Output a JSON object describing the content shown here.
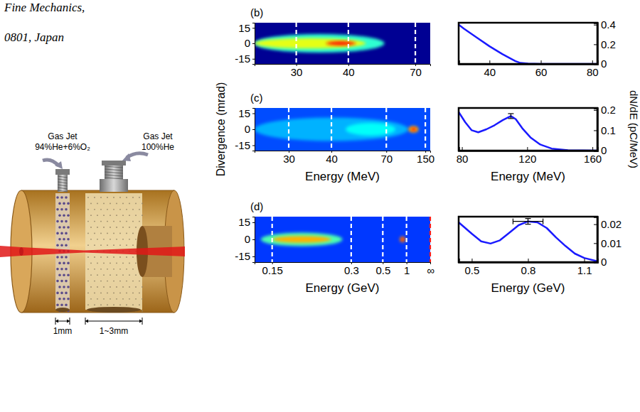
{
  "header": {
    "lines": [
      "Fine Mechanics,",
      "0801, Japan"
    ]
  },
  "diagram": {
    "jets": [
      {
        "label": "Gas Jet",
        "gas": "94%He+6%O₂"
      },
      {
        "label": "Gas Jet",
        "gas": "100%He"
      }
    ],
    "dimensions": [
      "1mm",
      "1~3mm"
    ]
  },
  "chart_data": [
    {
      "type": "heatmap",
      "title": "(b)",
      "xlim": [
        25,
        84
      ],
      "xticks": [
        30,
        40,
        70
      ],
      "ylim": [
        -20,
        20
      ],
      "yticks": [
        15,
        0,
        -15
      ],
      "grid": true,
      "background": 0.02,
      "spots": [
        {
          "energy": [
            25,
            52
          ],
          "divergence": [
            -9,
            9
          ],
          "intensity": 0.42
        },
        {
          "energy": [
            25,
            45
          ],
          "divergence": [
            -5,
            5
          ],
          "intensity": 0.6
        },
        {
          "energy": [
            35,
            42
          ],
          "divergence": [
            -2,
            2
          ],
          "intensity": 0.85
        }
      ]
    },
    {
      "type": "line",
      "x": [
        28,
        30,
        35,
        40,
        45,
        50,
        52,
        55,
        60,
        70,
        82
      ],
      "values": [
        0.4,
        0.36,
        0.27,
        0.18,
        0.1,
        0.03,
        0.01,
        0.004,
        0,
        0,
        0
      ],
      "xlim": [
        28,
        82
      ],
      "xticks": [
        40,
        60,
        80
      ],
      "ylim": [
        0,
        0.42
      ],
      "yticks": [
        0,
        0.2,
        0.4
      ],
      "color": "#1a1aff"
    },
    {
      "type": "heatmap",
      "title": "(c)",
      "xlabel": "Energy (MeV)",
      "ylabel": "Divergence (mrad)",
      "xlim": [
        25,
        175
      ],
      "xticks": [
        30,
        40,
        70,
        150
      ],
      "ylim": [
        -20,
        20
      ],
      "yticks": [
        15,
        0,
        -15
      ],
      "grid": true,
      "background": 0.2,
      "spots": [
        {
          "energy": [
            25,
            100
          ],
          "divergence": [
            -11,
            11
          ],
          "intensity": 0.3
        },
        {
          "energy": [
            45,
            80
          ],
          "divergence": [
            -6,
            6
          ],
          "intensity": 0.38
        },
        {
          "energy": [
            100,
            125
          ],
          "divergence": [
            -3,
            3
          ],
          "intensity": 0.7
        },
        {
          "energy": [
            106,
            118
          ],
          "divergence": [
            -1.5,
            1.5
          ],
          "intensity": 0.85
        }
      ]
    },
    {
      "type": "line",
      "xlabel": "Energy (MeV)",
      "ylabel": "dN/dE (pC/MeV)",
      "x": [
        78,
        82,
        86,
        90,
        95,
        100,
        105,
        110,
        113,
        117,
        122,
        128,
        135,
        145,
        163
      ],
      "values": [
        0.19,
        0.14,
        0.1,
        0.09,
        0.105,
        0.125,
        0.15,
        0.17,
        0.155,
        0.11,
        0.065,
        0.03,
        0.01,
        0.002,
        0
      ],
      "xlim": [
        78,
        163
      ],
      "xticks": [
        80,
        120,
        160
      ],
      "ylim": [
        0,
        0.21
      ],
      "yticks": [
        0,
        0.1,
        0.2
      ],
      "color": "#1a1aff",
      "error_bars": [
        {
          "x": 110,
          "y": 0.17,
          "yerr": 0.012
        }
      ]
    },
    {
      "type": "heatmap",
      "title": "(d)",
      "xlabel": "Energy (GeV)",
      "xlim": [
        0.135,
        null
      ],
      "xticks": [
        0.15,
        0.3,
        0.5,
        1,
        {
          "value": null,
          "label": "∞"
        }
      ],
      "ylim": [
        -20,
        20
      ],
      "yticks": [
        15,
        0,
        -15
      ],
      "grid": true,
      "background": 0.18,
      "spots": [
        {
          "energy": [
            0.14,
            0.27
          ],
          "divergence": [
            -6,
            6
          ],
          "intensity": 0.45
        },
        {
          "energy": [
            0.15,
            0.24
          ],
          "divergence": [
            -3,
            3
          ],
          "intensity": 0.7
        },
        {
          "energy": [
            0.78,
            0.95
          ],
          "divergence": [
            -2.5,
            2.5
          ],
          "intensity": 0.75
        },
        {
          "energy": [
            0.82,
            0.9
          ],
          "divergence": [
            -1,
            1
          ],
          "intensity": 0.9
        }
      ]
    },
    {
      "type": "line",
      "xlabel": "Energy (GeV)",
      "x": [
        0.43,
        0.5,
        0.55,
        0.6,
        0.65,
        0.7,
        0.75,
        0.8,
        0.85,
        0.9,
        0.95,
        1.0,
        1.05,
        1.1,
        1.17
      ],
      "values": [
        0.021,
        0.015,
        0.011,
        0.0098,
        0.0115,
        0.0155,
        0.0195,
        0.0215,
        0.021,
        0.018,
        0.013,
        0.0085,
        0.0045,
        0.0022,
        0.0005
      ],
      "xlim": [
        0.43,
        1.17
      ],
      "xticks": [
        0.5,
        0.8,
        1.1
      ],
      "ylim": [
        0,
        0.024
      ],
      "yticks": [
        0,
        0.01,
        0.02
      ],
      "color": "#1a1aff",
      "error_bars": [
        {
          "x": 0.8,
          "y": 0.0215,
          "xerr": 0.08,
          "yerr": 0.0015
        }
      ]
    }
  ]
}
